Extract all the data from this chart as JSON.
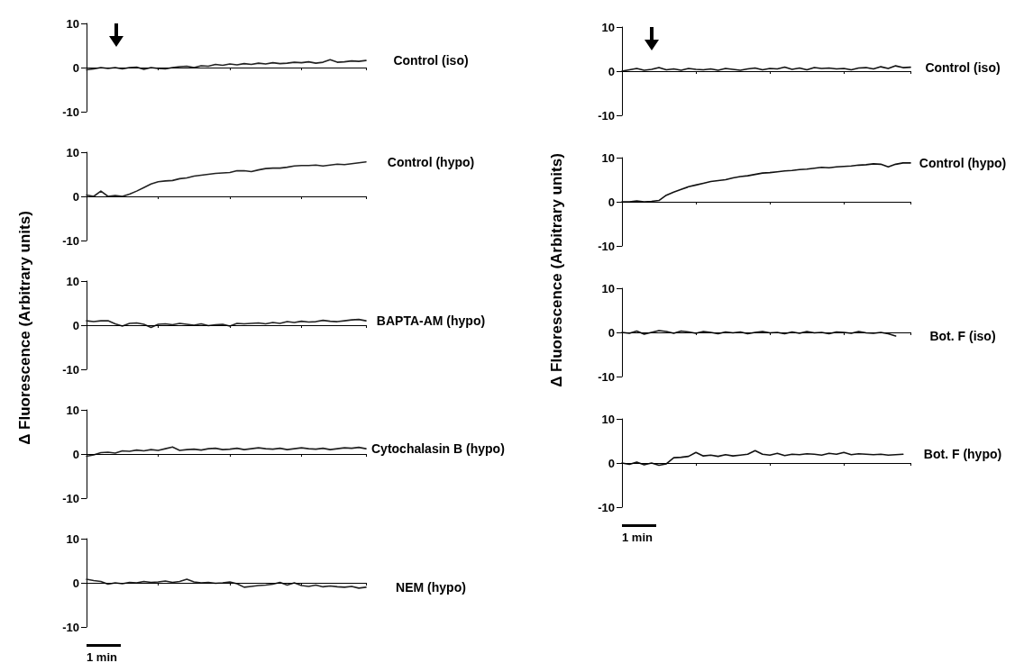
{
  "chart_data": [
    {
      "type": "line",
      "categories": [
        null,
        null,
        null,
        null,
        null,
        null,
        null,
        null,
        null,
        null,
        null,
        null,
        null,
        null,
        null,
        null,
        null,
        null,
        null,
        null,
        null,
        null,
        null,
        null,
        null,
        null,
        null,
        null,
        null,
        null,
        null,
        null,
        null,
        null,
        null,
        null,
        null,
        null,
        null,
        null
      ],
      "ylim": [
        -10,
        10
      ],
      "yticks": [
        -10,
        0,
        10
      ],
      "tick_labels": "y",
      "legend": false,
      "ref_lines": [
        {
          "axis": "y",
          "value": 0
        }
      ],
      "series": [
        {
          "name": "Control (iso)",
          "color": "#222222",
          "values": [
            -0.5,
            -0.3,
            0,
            -0.2,
            0,
            -0.3,
            0,
            0.1,
            -0.4,
            0,
            -0.2,
            -0.3,
            0,
            0.2,
            0.3,
            0,
            0.4,
            0.3,
            0.7,
            0.5,
            0.8,
            0.6,
            0.9,
            0.7,
            1.0,
            0.8,
            1.1,
            0.9,
            1.0,
            1.2,
            1.1,
            1.3,
            1.0,
            1.2,
            1.8,
            1.2,
            1.3,
            1.5,
            1.4,
            1.6
          ]
        }
      ]
    },
    {
      "type": "line",
      "categories": [
        null,
        null,
        null,
        null,
        null,
        null,
        null,
        null,
        null,
        null,
        null,
        null,
        null,
        null,
        null,
        null,
        null,
        null,
        null,
        null,
        null,
        null,
        null,
        null,
        null,
        null,
        null,
        null,
        null,
        null,
        null,
        null,
        null,
        null,
        null,
        null,
        null,
        null,
        null,
        null
      ],
      "ylim": [
        -10,
        10
      ],
      "yticks": [
        -10,
        0,
        10
      ],
      "tick_labels": "y",
      "legend": false,
      "ref_lines": [
        {
          "axis": "y",
          "value": 0
        }
      ],
      "series": [
        {
          "name": "Control (hypo)",
          "color": "#222222",
          "values": [
            0.3,
            0,
            1.2,
            0,
            0.2,
            0,
            0.5,
            1.2,
            2,
            2.8,
            3.3,
            3.5,
            3.6,
            4,
            4.2,
            4.6,
            4.8,
            5,
            5.2,
            5.3,
            5.4,
            5.8,
            5.8,
            5.6,
            6.0,
            6.3,
            6.4,
            6.4,
            6.6,
            6.9,
            7.0,
            7.0,
            7.1,
            6.9,
            7.1,
            7.3,
            7.2,
            7.4,
            7.6,
            7.8
          ]
        }
      ]
    },
    {
      "type": "line",
      "categories": [
        null,
        null,
        null,
        null,
        null,
        null,
        null,
        null,
        null,
        null,
        null,
        null,
        null,
        null,
        null,
        null,
        null,
        null,
        null,
        null,
        null,
        null,
        null,
        null,
        null,
        null,
        null,
        null,
        null,
        null,
        null,
        null,
        null,
        null,
        null,
        null,
        null,
        null,
        null,
        null
      ],
      "ylim": [
        -10,
        10
      ],
      "yticks": [
        -10,
        0,
        10
      ],
      "tick_labels": "y",
      "legend": false,
      "ref_lines": [
        {
          "axis": "y",
          "value": 0
        }
      ],
      "ylabel": "Δ Fluorescence (Arbitrary units)",
      "series": [
        {
          "name": "BAPTA-AM (hypo)",
          "color": "#222222",
          "values": [
            1.0,
            0.8,
            1.0,
            1.0,
            0.3,
            -0.2,
            0.4,
            0.5,
            0.2,
            -0.5,
            0.2,
            0.3,
            0.1,
            0.4,
            0.2,
            0,
            0.3,
            -0.1,
            0.1,
            0.2,
            -0.2,
            0.4,
            0.3,
            0.4,
            0.5,
            0.3,
            0.6,
            0.4,
            0.8,
            0.6,
            0.9,
            0.7,
            0.8,
            1.1,
            0.9,
            0.8,
            1.0,
            1.2,
            1.3,
            1.0
          ]
        }
      ]
    },
    {
      "type": "line",
      "categories": [
        null,
        null,
        null,
        null,
        null,
        null,
        null,
        null,
        null,
        null,
        null,
        null,
        null,
        null,
        null,
        null,
        null,
        null,
        null,
        null,
        null,
        null,
        null,
        null,
        null,
        null,
        null,
        null,
        null,
        null,
        null,
        null,
        null,
        null,
        null,
        null,
        null,
        null,
        null,
        null
      ],
      "ylim": [
        -10,
        10
      ],
      "yticks": [
        -10,
        0,
        10
      ],
      "tick_labels": "y",
      "legend": false,
      "ref_lines": [
        {
          "axis": "y",
          "value": 0
        }
      ],
      "series": [
        {
          "name": "Cytochalasin B (hypo)",
          "color": "#222222",
          "values": [
            -0.5,
            -0.2,
            0.3,
            0.4,
            0.2,
            0.7,
            0.6,
            0.9,
            0.7,
            1.0,
            0.8,
            1.2,
            1.6,
            0.8,
            1.0,
            1.1,
            0.9,
            1.2,
            1.3,
            1.0,
            1.1,
            1.3,
            1.0,
            1.2,
            1.4,
            1.2,
            1.1,
            1.3,
            1.0,
            1.2,
            1.4,
            1.2,
            1.1,
            1.3,
            1.0,
            1.2,
            1.4,
            1.3,
            1.5,
            1.2
          ]
        }
      ]
    },
    {
      "type": "line",
      "categories": [
        null,
        null,
        null,
        null,
        null,
        null,
        null,
        null,
        null,
        null,
        null,
        null,
        null,
        null,
        null,
        null,
        null,
        null,
        null,
        null,
        null,
        null,
        null,
        null,
        null,
        null,
        null,
        null,
        null,
        null,
        null,
        null,
        null,
        null,
        null,
        null,
        null,
        null,
        null,
        null
      ],
      "ylim": [
        -10,
        10
      ],
      "yticks": [
        -10,
        0,
        10
      ],
      "tick_labels": "y",
      "legend": false,
      "ref_lines": [
        {
          "axis": "y",
          "value": 0
        }
      ],
      "annotations": [
        "1 min"
      ],
      "series": [
        {
          "name": "NEM (hypo)",
          "color": "#222222",
          "values": [
            0.8,
            0.5,
            0.3,
            -0.3,
            0,
            -0.2,
            0.1,
            0,
            0.3,
            0.1,
            0.2,
            0.4,
            0.1,
            0.3,
            0.8,
            0.2,
            0,
            0.1,
            -0.1,
            0,
            0.2,
            -0.2,
            -1.0,
            -0.8,
            -0.6,
            -0.5,
            -0.3,
            0.1,
            -0.5,
            0,
            -0.6,
            -0.8,
            -0.5,
            -0.9,
            -0.7,
            -0.9,
            -1.0,
            -0.8,
            -1.2,
            -1.0
          ]
        }
      ]
    },
    {
      "type": "line",
      "categories": [
        null,
        null,
        null,
        null,
        null,
        null,
        null,
        null,
        null,
        null,
        null,
        null,
        null,
        null,
        null,
        null,
        null,
        null,
        null,
        null,
        null,
        null,
        null,
        null,
        null,
        null,
        null,
        null,
        null,
        null,
        null,
        null,
        null,
        null,
        null,
        null,
        null,
        null,
        null,
        null
      ],
      "ylim": [
        -10,
        10
      ],
      "yticks": [
        -10,
        0,
        10
      ],
      "tick_labels": "y",
      "legend": false,
      "ref_lines": [
        {
          "axis": "y",
          "value": 0
        }
      ],
      "series": [
        {
          "name": "Control (iso)",
          "color": "#111111",
          "values": [
            0,
            0.3,
            0.6,
            0.2,
            0.4,
            0.8,
            0.3,
            0.5,
            0.2,
            0.6,
            0.4,
            0.3,
            0.5,
            0.2,
            0.6,
            0.4,
            0.2,
            0.5,
            0.7,
            0.3,
            0.6,
            0.5,
            0.9,
            0.4,
            0.7,
            0.3,
            0.8,
            0.6,
            0.7,
            0.5,
            0.6,
            0.3,
            0.7,
            0.8,
            0.5,
            1.0,
            0.6,
            1.2,
            0.8,
            0.9
          ]
        }
      ]
    },
    {
      "type": "line",
      "categories": [
        null,
        null,
        null,
        null,
        null,
        null,
        null,
        null,
        null,
        null,
        null,
        null,
        null,
        null,
        null,
        null,
        null,
        null,
        null,
        null,
        null,
        null,
        null,
        null,
        null,
        null,
        null,
        null,
        null,
        null,
        null,
        null,
        null,
        null,
        null,
        null,
        null,
        null,
        null,
        null
      ],
      "ylim": [
        -10,
        10
      ],
      "yticks": [
        -10,
        0,
        10
      ],
      "tick_labels": "y",
      "legend": false,
      "ref_lines": [
        {
          "axis": "y",
          "value": 0
        }
      ],
      "ylabel": "Δ Fluorescence (Arbitrary units)",
      "series": [
        {
          "name": "Control (hypo)",
          "color": "#111111",
          "values": [
            0,
            0,
            0.2,
            0,
            0.1,
            0.3,
            1.5,
            2.2,
            2.8,
            3.4,
            3.8,
            4.2,
            4.6,
            4.8,
            5.0,
            5.4,
            5.7,
            5.9,
            6.2,
            6.5,
            6.6,
            6.8,
            7.0,
            7.1,
            7.3,
            7.4,
            7.6,
            7.8,
            7.7,
            7.9,
            8.0,
            8.1,
            8.3,
            8.4,
            8.6,
            8.5,
            7.9,
            8.5,
            8.8,
            8.8
          ]
        }
      ]
    },
    {
      "type": "line",
      "categories": [
        null,
        null,
        null,
        null,
        null,
        null,
        null,
        null,
        null,
        null,
        null,
        null,
        null,
        null,
        null,
        null,
        null,
        null,
        null,
        null,
        null,
        null,
        null,
        null,
        null,
        null,
        null,
        null,
        null,
        null,
        null,
        null,
        null,
        null,
        null,
        null,
        null,
        null,
        null,
        null
      ],
      "ylim": [
        -10,
        10
      ],
      "yticks": [
        -10,
        0,
        10
      ],
      "tick_labels": "y",
      "legend": false,
      "ref_lines": [
        {
          "axis": "y",
          "value": 0
        }
      ],
      "series": [
        {
          "name": "Bot. F (iso)",
          "color": "#111111",
          "values": [
            0,
            -0.2,
            0.3,
            -0.4,
            0,
            0.4,
            0.2,
            -0.2,
            0.3,
            0.1,
            -0.2,
            0.2,
            0,
            -0.3,
            0.1,
            -0.1,
            0.1,
            -0.3,
            0,
            0.2,
            -0.1,
            0,
            -0.3,
            0.1,
            -0.2,
            0.2,
            -0.1,
            0,
            -0.3,
            0.1,
            0,
            -0.2,
            0.2,
            -0.1,
            -0.2,
            0,
            -0.3,
            -0.8,
            null,
            null
          ]
        }
      ]
    },
    {
      "type": "line",
      "categories": [
        null,
        null,
        null,
        null,
        null,
        null,
        null,
        null,
        null,
        null,
        null,
        null,
        null,
        null,
        null,
        null,
        null,
        null,
        null,
        null,
        null,
        null,
        null,
        null,
        null,
        null,
        null,
        null,
        null,
        null,
        null,
        null,
        null,
        null,
        null,
        null,
        null,
        null,
        null,
        null
      ],
      "ylim": [
        -10,
        10
      ],
      "yticks": [
        -10,
        0,
        10
      ],
      "tick_labels": "y",
      "legend": false,
      "ref_lines": [
        {
          "axis": "y",
          "value": 0
        }
      ],
      "annotations": [
        "1 min"
      ],
      "series": [
        {
          "name": "Bot. F (hypo)",
          "color": "#111111",
          "values": [
            0,
            -0.3,
            0.2,
            -0.4,
            0,
            -0.5,
            -0.2,
            1.2,
            1.3,
            1.5,
            2.4,
            1.6,
            1.8,
            1.5,
            1.9,
            1.6,
            1.8,
            2.0,
            2.8,
            2.0,
            1.8,
            2.2,
            1.7,
            2.0,
            1.9,
            2.1,
            2.0,
            1.8,
            2.2,
            2.0,
            2.4,
            1.9,
            2.1,
            2.0,
            1.9,
            2.0,
            1.8,
            1.9,
            2.0,
            null
          ]
        }
      ]
    }
  ]
}
